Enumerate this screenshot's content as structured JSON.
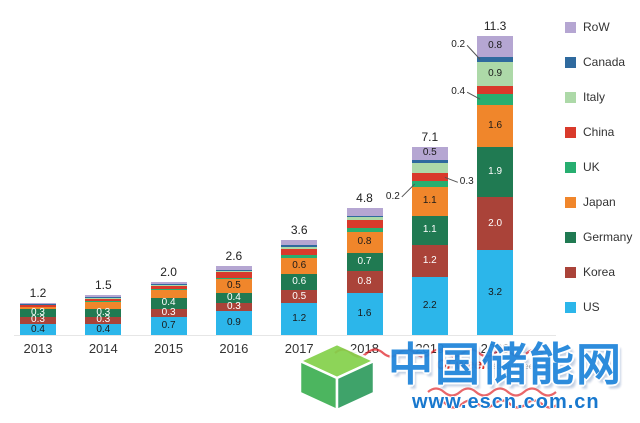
{
  "chart_data": {
    "type": "bar",
    "stacked": true,
    "title": "",
    "xlabel": "",
    "ylabel": "",
    "ylim": [
      0,
      12
    ],
    "grid": false,
    "legend_position": "right",
    "x_categories": [
      "2013",
      "2014",
      "2015",
      "2016",
      "2017",
      "2018",
      "2019",
      "2020"
    ],
    "totals": [
      "1.2",
      "1.5",
      "2.0",
      "2.6",
      "3.6",
      "4.8",
      "7.1",
      "11.3"
    ],
    "legend_order_top_to_bottom": [
      "RoW",
      "Canada",
      "Italy",
      "China",
      "UK",
      "Japan",
      "Germany",
      "Korea",
      "US"
    ],
    "series": [
      {
        "name": "US",
        "color": "#2cb6ea",
        "label_color": "#1a1a1a",
        "values": [
          0.4,
          0.4,
          0.7,
          0.9,
          1.2,
          1.6,
          2.2,
          3.2
        ],
        "labels": [
          "0.4",
          "0.4",
          "0.7",
          "0.9",
          "1.2",
          "1.6",
          "2.2",
          "3.2"
        ]
      },
      {
        "name": "Korea",
        "color": "#aa4339",
        "label_color": "#ffffff",
        "values": [
          0.3,
          0.3,
          0.3,
          0.3,
          0.5,
          0.8,
          1.2,
          2.0
        ],
        "labels": [
          "0.3",
          "0.3",
          "0.3",
          "0.3",
          "0.5",
          "0.8",
          "1.2",
          "2.0"
        ]
      },
      {
        "name": "Germany",
        "color": "#207a52",
        "label_color": "#ffffff",
        "values": [
          0.3,
          0.3,
          0.4,
          0.4,
          0.6,
          0.7,
          1.1,
          1.9
        ],
        "labels": [
          "0.3",
          "0.3",
          "0.4",
          "0.4",
          "0.6",
          "0.7",
          "1.1",
          "1.9"
        ]
      },
      {
        "name": "Japan",
        "color": "#f0862b",
        "label_color": "#1a1a1a",
        "values": [
          0.06,
          0.25,
          0.3,
          0.5,
          0.6,
          0.8,
          1.1,
          1.6
        ],
        "labels": [
          "",
          "",
          "",
          "0.5",
          "0.6",
          "0.8",
          "1.1",
          "1.6"
        ]
      },
      {
        "name": "UK",
        "color": "#27ae70",
        "label_color": "#1a1a1a",
        "values": [
          0.02,
          0.03,
          0.04,
          0.06,
          0.1,
          0.15,
          0.2,
          0.4
        ],
        "labels": [
          "",
          "",
          "",
          "",
          "",
          "",
          "",
          ""
        ]
      },
      {
        "name": "China",
        "color": "#d93a2b",
        "label_color": "#ffffff",
        "values": [
          0.05,
          0.1,
          0.12,
          0.2,
          0.25,
          0.3,
          0.3,
          0.3
        ],
        "labels": [
          "",
          "",
          "",
          "",
          "",
          "",
          "",
          ""
        ]
      },
      {
        "name": "Italy",
        "color": "#add9a8",
        "label_color": "#1a1a1a",
        "values": [
          0.02,
          0.03,
          0.04,
          0.06,
          0.08,
          0.1,
          0.4,
          0.9
        ],
        "labels": [
          "",
          "",
          "",
          "",
          "",
          "",
          "",
          "0.9"
        ]
      },
      {
        "name": "Canada",
        "color": "#2f6a9e",
        "label_color": "#ffffff",
        "values": [
          0.02,
          0.03,
          0.03,
          0.05,
          0.07,
          0.05,
          0.1,
          0.2
        ],
        "labels": [
          "",
          "",
          "",
          "",
          "",
          "",
          "",
          ""
        ]
      },
      {
        "name": "RoW",
        "color": "#b5a6d2",
        "label_color": "#1a1a1a",
        "values": [
          0.03,
          0.06,
          0.07,
          0.13,
          0.2,
          0.3,
          0.5,
          0.8
        ],
        "labels": [
          "",
          "",
          "",
          "",
          "",
          "",
          "0.5",
          "0.8"
        ]
      }
    ],
    "callouts": [
      {
        "year": "2019",
        "series": "UK",
        "text": "0.2",
        "side": "left",
        "dy": 14
      },
      {
        "year": "2019",
        "series": "China",
        "text": "0.3",
        "side": "right",
        "dy": 6
      },
      {
        "year": "2020",
        "series": "Canada",
        "text": "0.2",
        "side": "left",
        "dy": -13
      },
      {
        "year": "2020",
        "series": "UK",
        "text": "0.4",
        "side": "left",
        "dy": -6
      }
    ]
  },
  "watermark": {
    "site_name": "中国储能网",
    "site_url": "www.escn.com.cn",
    "ofweek_label": "OFweek",
    "ofweek_sub": "solar.ofweek.com"
  }
}
